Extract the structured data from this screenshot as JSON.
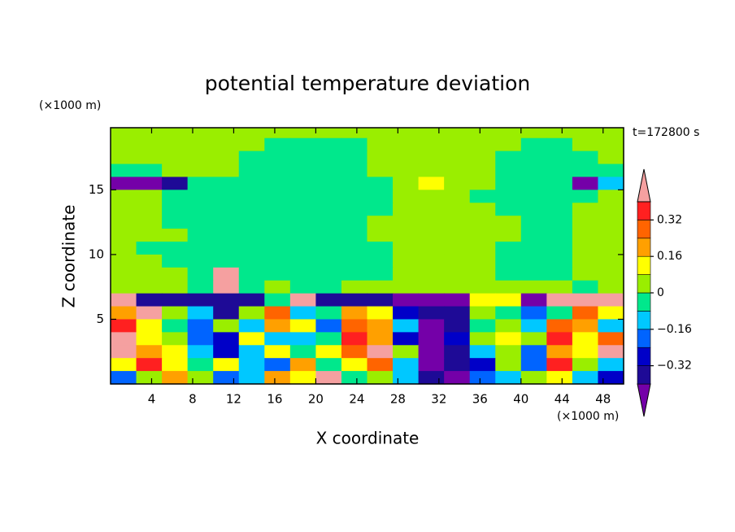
{
  "chart_data": {
    "type": "contour",
    "title": "potential temperature deviation",
    "x_label": "X coordinate",
    "y_label": "Z coordinate",
    "x_unit": "(×1000 m)",
    "y_unit": "(×1000 m)",
    "annotation": "t=172800 s",
    "xlim": [
      0,
      50
    ],
    "ylim": [
      0,
      19.8
    ],
    "xticks": [
      4,
      8,
      12,
      16,
      20,
      24,
      28,
      32,
      36,
      40,
      44,
      48
    ],
    "yticks": [
      5,
      10,
      15
    ],
    "x": [
      1.25,
      3.75,
      6.25,
      8.75,
      11.25,
      13.75,
      16.25,
      18.75,
      21.25,
      23.75,
      26.25,
      28.75,
      31.25,
      33.75,
      36.25,
      38.75,
      41.25,
      43.75,
      46.25,
      48.75
    ],
    "y": [
      19.5,
      18.5,
      17.5,
      16.5,
      15.5,
      14.5,
      13.5,
      12.5,
      11.5,
      10.5,
      9.5,
      8.5,
      7.5,
      6.5,
      5.5,
      4.5,
      3.5,
      2.5,
      1.5,
      0.5
    ],
    "values": [
      [
        0.04,
        0.04,
        0.04,
        0.04,
        0.04,
        0.04,
        0.04,
        0.04,
        0.04,
        0.04,
        0.04,
        0.04,
        0.04,
        0.04,
        0.04,
        0.04,
        0.04,
        0.04,
        0.04,
        0.04
      ],
      [
        0.04,
        0.04,
        0.04,
        0.04,
        0.04,
        0.04,
        -0.04,
        -0.04,
        -0.04,
        -0.04,
        0.04,
        0.04,
        0.04,
        0.04,
        0.04,
        0.04,
        -0.04,
        -0.04,
        0.04,
        0.04
      ],
      [
        0.04,
        0.04,
        0.04,
        0.04,
        0.04,
        -0.04,
        -0.04,
        -0.04,
        -0.04,
        -0.04,
        0.04,
        0.04,
        0.04,
        0.04,
        0.04,
        -0.04,
        -0.04,
        -0.04,
        -0.04,
        0.04
      ],
      [
        -0.04,
        -0.04,
        0.04,
        0.04,
        0.04,
        -0.04,
        -0.04,
        -0.04,
        -0.04,
        -0.04,
        0.04,
        0.04,
        0.04,
        0.04,
        0.04,
        -0.04,
        -0.04,
        -0.04,
        -0.04,
        -0.04
      ],
      [
        -0.45,
        -0.45,
        -0.36,
        -0.04,
        -0.04,
        -0.04,
        -0.04,
        -0.04,
        -0.04,
        -0.04,
        -0.04,
        0.04,
        0.12,
        0.04,
        0.04,
        -0.04,
        -0.04,
        -0.04,
        -0.45,
        -0.12
      ],
      [
        0.04,
        0.04,
        -0.04,
        -0.04,
        -0.04,
        -0.04,
        -0.04,
        -0.04,
        -0.04,
        -0.04,
        -0.04,
        0.04,
        0.04,
        0.04,
        -0.04,
        -0.04,
        -0.04,
        -0.04,
        -0.04,
        0.04
      ],
      [
        0.04,
        0.04,
        -0.04,
        -0.04,
        -0.04,
        -0.04,
        -0.04,
        -0.04,
        -0.04,
        -0.04,
        -0.04,
        0.04,
        0.04,
        0.04,
        0.04,
        -0.04,
        -0.04,
        -0.04,
        0.04,
        0.04
      ],
      [
        0.04,
        0.04,
        -0.04,
        -0.04,
        -0.04,
        -0.04,
        -0.04,
        -0.04,
        -0.04,
        -0.04,
        0.04,
        0.04,
        0.04,
        0.04,
        0.04,
        0.04,
        -0.04,
        -0.04,
        0.04,
        0.04
      ],
      [
        0.04,
        0.04,
        0.04,
        -0.04,
        -0.04,
        -0.04,
        -0.04,
        -0.04,
        -0.04,
        -0.04,
        0.04,
        0.04,
        0.04,
        0.04,
        0.04,
        0.04,
        -0.04,
        -0.04,
        0.04,
        0.04
      ],
      [
        0.04,
        -0.04,
        -0.04,
        -0.04,
        -0.04,
        -0.04,
        -0.04,
        -0.04,
        -0.04,
        -0.04,
        -0.04,
        0.04,
        0.04,
        0.04,
        0.04,
        -0.04,
        -0.04,
        -0.04,
        0.04,
        0.04
      ],
      [
        0.04,
        0.04,
        -0.04,
        -0.04,
        -0.04,
        -0.04,
        -0.04,
        -0.04,
        -0.04,
        -0.04,
        -0.04,
        0.04,
        0.04,
        0.04,
        0.04,
        -0.04,
        -0.04,
        -0.04,
        0.04,
        0.04
      ],
      [
        0.04,
        0.04,
        0.04,
        -0.04,
        0.45,
        -0.04,
        -0.04,
        -0.04,
        -0.04,
        -0.04,
        -0.04,
        0.04,
        0.04,
        0.04,
        0.04,
        -0.04,
        -0.04,
        -0.04,
        0.04,
        0.04
      ],
      [
        0.04,
        0.04,
        0.04,
        -0.04,
        0.45,
        -0.04,
        0.04,
        -0.04,
        -0.04,
        0.04,
        0.04,
        0.04,
        0.04,
        0.04,
        0.04,
        0.04,
        0.04,
        0.04,
        -0.04,
        0.04
      ],
      [
        0.45,
        -0.36,
        -0.36,
        -0.36,
        -0.36,
        -0.36,
        -0.04,
        0.45,
        -0.36,
        -0.36,
        -0.36,
        -0.45,
        -0.45,
        -0.45,
        0.12,
        0.12,
        -0.45,
        0.45,
        0.45,
        0.45
      ],
      [
        0.2,
        0.45,
        0.04,
        -0.12,
        -0.36,
        0.04,
        0.28,
        -0.12,
        -0.04,
        0.2,
        0.12,
        -0.28,
        -0.36,
        -0.36,
        0.04,
        -0.04,
        -0.2,
        -0.04,
        0.28,
        0.12
      ],
      [
        0.36,
        0.12,
        -0.04,
        -0.2,
        0.04,
        -0.12,
        0.2,
        0.12,
        -0.2,
        0.28,
        0.2,
        -0.12,
        -0.45,
        -0.36,
        -0.04,
        0.04,
        -0.12,
        0.28,
        0.2,
        -0.12
      ],
      [
        0.45,
        0.12,
        0.04,
        -0.2,
        -0.28,
        0.12,
        -0.12,
        -0.12,
        -0.04,
        0.36,
        0.2,
        -0.28,
        -0.45,
        -0.28,
        0.04,
        0.12,
        0.04,
        0.36,
        0.12,
        0.28
      ],
      [
        0.45,
        0.2,
        0.12,
        -0.12,
        -0.28,
        -0.12,
        0.12,
        -0.04,
        0.12,
        0.28,
        0.45,
        0.04,
        -0.45,
        -0.36,
        -0.12,
        0.04,
        -0.2,
        0.2,
        0.12,
        0.45
      ],
      [
        0.12,
        0.36,
        0.12,
        -0.04,
        0.12,
        -0.12,
        -0.2,
        0.2,
        -0.04,
        0.12,
        0.28,
        -0.12,
        -0.45,
        -0.36,
        -0.28,
        0.04,
        -0.2,
        0.36,
        0.04,
        -0.12
      ],
      [
        -0.2,
        0.04,
        0.2,
        0.04,
        -0.2,
        -0.12,
        0.2,
        0.12,
        0.45,
        -0.04,
        0.04,
        -0.12,
        -0.36,
        -0.45,
        -0.2,
        -0.12,
        0.04,
        0.12,
        -0.12,
        -0.28
      ]
    ],
    "colorbar": {
      "levels": [
        -0.4,
        -0.32,
        -0.24,
        -0.16,
        -0.08,
        0,
        0.08,
        0.16,
        0.24,
        0.32,
        0.4
      ],
      "colors": [
        "#7400a8",
        "#1e0a96",
        "#0000c8",
        "#0064ff",
        "#00c8ff",
        "#00e88c",
        "#9aee00",
        "#ffff00",
        "#ffa000",
        "#ff6400",
        "#ff2020",
        "#f5a0a0"
      ],
      "ticks": [
        {
          "value": -0.32,
          "label": "−0.32"
        },
        {
          "value": -0.16,
          "label": "−0.16"
        },
        0,
        0.16,
        0.32
      ]
    }
  }
}
